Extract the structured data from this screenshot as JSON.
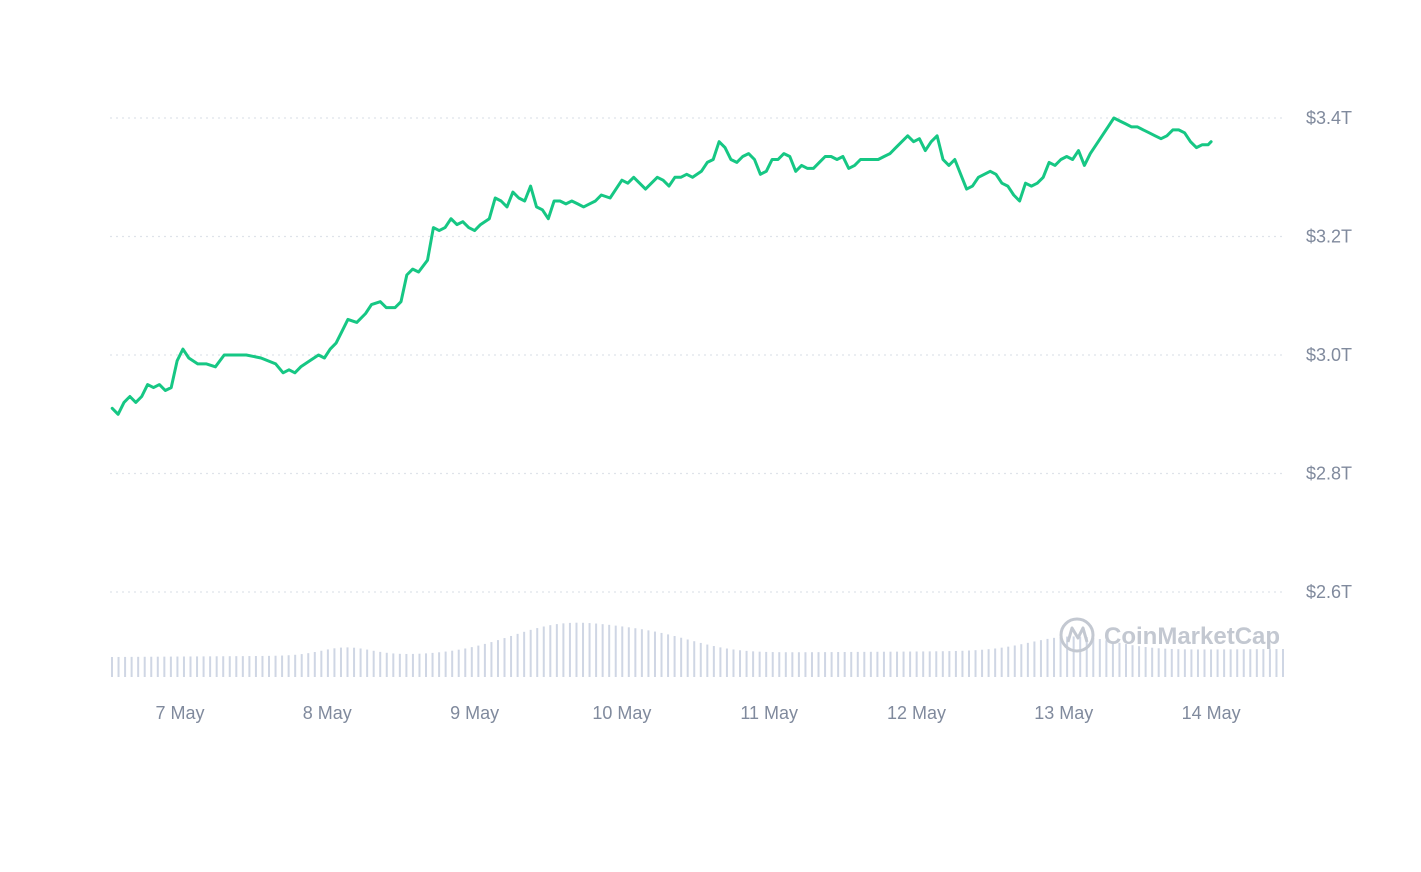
{
  "chart_data": {
    "type": "line",
    "line_color": "#16c784",
    "volume_color": "#cfd6e4",
    "ylim": [
      2.5,
      3.45
    ],
    "y_ticks": [
      {
        "value": 3.4,
        "label": "$3.4T"
      },
      {
        "value": 3.2,
        "label": "$3.2T"
      },
      {
        "value": 3.0,
        "label": "$3.0T"
      },
      {
        "value": 2.8,
        "label": "$2.8T"
      },
      {
        "value": 2.6,
        "label": "$2.6T"
      }
    ],
    "x_ticks": [
      {
        "value": 7,
        "label": "7 May"
      },
      {
        "value": 8,
        "label": "8 May"
      },
      {
        "value": 9,
        "label": "9 May"
      },
      {
        "value": 10,
        "label": "10 May"
      },
      {
        "value": 11,
        "label": "11 May"
      },
      {
        "value": 12,
        "label": "12 May"
      },
      {
        "value": 13,
        "label": "13 May"
      },
      {
        "value": 14,
        "label": "14 May"
      }
    ],
    "xlim": [
      6.54,
      14.5
    ],
    "series": [
      {
        "points": [
          [
            6.54,
            2.91
          ],
          [
            6.58,
            2.9
          ],
          [
            6.62,
            2.92
          ],
          [
            6.66,
            2.93
          ],
          [
            6.7,
            2.92
          ],
          [
            6.74,
            2.93
          ],
          [
            6.78,
            2.95
          ],
          [
            6.82,
            2.945
          ],
          [
            6.86,
            2.95
          ],
          [
            6.9,
            2.94
          ],
          [
            6.94,
            2.945
          ],
          [
            6.98,
            2.99
          ],
          [
            7.02,
            3.01
          ],
          [
            7.06,
            2.995
          ],
          [
            7.12,
            2.985
          ],
          [
            7.18,
            2.985
          ],
          [
            7.24,
            2.98
          ],
          [
            7.3,
            3.0
          ],
          [
            7.36,
            3.0
          ],
          [
            7.45,
            3.0
          ],
          [
            7.55,
            2.995
          ],
          [
            7.65,
            2.985
          ],
          [
            7.7,
            2.97
          ],
          [
            7.74,
            2.975
          ],
          [
            7.78,
            2.97
          ],
          [
            7.82,
            2.98
          ],
          [
            7.88,
            2.99
          ],
          [
            7.94,
            3.0
          ],
          [
            7.98,
            2.995
          ],
          [
            8.02,
            3.01
          ],
          [
            8.06,
            3.02
          ],
          [
            8.1,
            3.04
          ],
          [
            8.14,
            3.06
          ],
          [
            8.2,
            3.055
          ],
          [
            8.26,
            3.07
          ],
          [
            8.3,
            3.085
          ],
          [
            8.36,
            3.09
          ],
          [
            8.4,
            3.08
          ],
          [
            8.46,
            3.08
          ],
          [
            8.5,
            3.09
          ],
          [
            8.54,
            3.135
          ],
          [
            8.58,
            3.145
          ],
          [
            8.62,
            3.14
          ],
          [
            8.68,
            3.16
          ],
          [
            8.72,
            3.215
          ],
          [
            8.76,
            3.21
          ],
          [
            8.8,
            3.215
          ],
          [
            8.84,
            3.23
          ],
          [
            8.88,
            3.22
          ],
          [
            8.92,
            3.225
          ],
          [
            8.96,
            3.215
          ],
          [
            9.0,
            3.21
          ],
          [
            9.04,
            3.22
          ],
          [
            9.1,
            3.23
          ],
          [
            9.14,
            3.265
          ],
          [
            9.18,
            3.26
          ],
          [
            9.22,
            3.25
          ],
          [
            9.26,
            3.275
          ],
          [
            9.3,
            3.265
          ],
          [
            9.34,
            3.26
          ],
          [
            9.38,
            3.285
          ],
          [
            9.42,
            3.25
          ],
          [
            9.46,
            3.245
          ],
          [
            9.5,
            3.23
          ],
          [
            9.54,
            3.26
          ],
          [
            9.58,
            3.26
          ],
          [
            9.62,
            3.255
          ],
          [
            9.66,
            3.26
          ],
          [
            9.7,
            3.255
          ],
          [
            9.74,
            3.25
          ],
          [
            9.78,
            3.255
          ],
          [
            9.82,
            3.26
          ],
          [
            9.86,
            3.27
          ],
          [
            9.92,
            3.265
          ],
          [
            9.96,
            3.28
          ],
          [
            10.0,
            3.295
          ],
          [
            10.04,
            3.29
          ],
          [
            10.08,
            3.3
          ],
          [
            10.12,
            3.29
          ],
          [
            10.16,
            3.28
          ],
          [
            10.2,
            3.29
          ],
          [
            10.24,
            3.3
          ],
          [
            10.28,
            3.295
          ],
          [
            10.32,
            3.285
          ],
          [
            10.36,
            3.3
          ],
          [
            10.4,
            3.3
          ],
          [
            10.44,
            3.305
          ],
          [
            10.48,
            3.3
          ],
          [
            10.54,
            3.31
          ],
          [
            10.58,
            3.325
          ],
          [
            10.62,
            3.33
          ],
          [
            10.66,
            3.36
          ],
          [
            10.7,
            3.35
          ],
          [
            10.74,
            3.33
          ],
          [
            10.78,
            3.325
          ],
          [
            10.82,
            3.335
          ],
          [
            10.86,
            3.34
          ],
          [
            10.9,
            3.33
          ],
          [
            10.94,
            3.305
          ],
          [
            10.98,
            3.31
          ],
          [
            11.02,
            3.33
          ],
          [
            11.06,
            3.33
          ],
          [
            11.1,
            3.34
          ],
          [
            11.14,
            3.335
          ],
          [
            11.18,
            3.31
          ],
          [
            11.22,
            3.32
          ],
          [
            11.26,
            3.315
          ],
          [
            11.3,
            3.315
          ],
          [
            11.34,
            3.325
          ],
          [
            11.38,
            3.335
          ],
          [
            11.42,
            3.335
          ],
          [
            11.46,
            3.33
          ],
          [
            11.5,
            3.335
          ],
          [
            11.54,
            3.315
          ],
          [
            11.58,
            3.32
          ],
          [
            11.62,
            3.33
          ],
          [
            11.66,
            3.33
          ],
          [
            11.7,
            3.33
          ],
          [
            11.74,
            3.33
          ],
          [
            11.78,
            3.335
          ],
          [
            11.82,
            3.34
          ],
          [
            11.86,
            3.35
          ],
          [
            11.9,
            3.36
          ],
          [
            11.94,
            3.37
          ],
          [
            11.98,
            3.36
          ],
          [
            12.02,
            3.365
          ],
          [
            12.06,
            3.345
          ],
          [
            12.1,
            3.36
          ],
          [
            12.14,
            3.37
          ],
          [
            12.18,
            3.33
          ],
          [
            12.22,
            3.32
          ],
          [
            12.26,
            3.33
          ],
          [
            12.3,
            3.305
          ],
          [
            12.34,
            3.28
          ],
          [
            12.38,
            3.285
          ],
          [
            12.42,
            3.3
          ],
          [
            12.46,
            3.305
          ],
          [
            12.5,
            3.31
          ],
          [
            12.54,
            3.305
          ],
          [
            12.58,
            3.29
          ],
          [
            12.62,
            3.285
          ],
          [
            12.66,
            3.27
          ],
          [
            12.7,
            3.26
          ],
          [
            12.74,
            3.29
          ],
          [
            12.78,
            3.285
          ],
          [
            12.82,
            3.29
          ],
          [
            12.86,
            3.3
          ],
          [
            12.9,
            3.325
          ],
          [
            12.94,
            3.32
          ],
          [
            12.98,
            3.33
          ],
          [
            13.02,
            3.335
          ],
          [
            13.06,
            3.33
          ],
          [
            13.1,
            3.345
          ],
          [
            13.14,
            3.32
          ],
          [
            13.18,
            3.34
          ],
          [
            13.22,
            3.355
          ],
          [
            13.26,
            3.37
          ],
          [
            13.3,
            3.385
          ],
          [
            13.34,
            3.4
          ],
          [
            13.38,
            3.395
          ],
          [
            13.42,
            3.39
          ],
          [
            13.46,
            3.385
          ],
          [
            13.5,
            3.385
          ],
          [
            13.54,
            3.38
          ],
          [
            13.58,
            3.375
          ],
          [
            13.62,
            3.37
          ],
          [
            13.66,
            3.365
          ],
          [
            13.7,
            3.37
          ],
          [
            13.74,
            3.38
          ],
          [
            13.78,
            3.38
          ],
          [
            13.82,
            3.375
          ],
          [
            13.86,
            3.36
          ],
          [
            13.9,
            3.35
          ],
          [
            13.94,
            3.355
          ],
          [
            13.98,
            3.355
          ],
          [
            14.0,
            3.36
          ]
        ]
      }
    ]
  },
  "watermark": {
    "text": "CoinMarketCap",
    "icon": "coinmarketcap-logo-icon"
  }
}
